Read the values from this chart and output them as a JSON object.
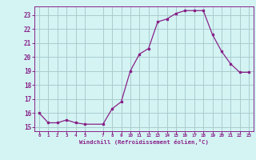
{
  "x": [
    0,
    1,
    2,
    3,
    4,
    5,
    7,
    8,
    9,
    10,
    11,
    12,
    13,
    14,
    15,
    16,
    17,
    18,
    19,
    20,
    21,
    22,
    23
  ],
  "y": [
    16.0,
    15.3,
    15.3,
    15.5,
    15.3,
    15.2,
    15.2,
    16.3,
    16.8,
    19.0,
    20.2,
    20.6,
    22.5,
    22.7,
    23.1,
    23.3,
    23.3,
    23.3,
    21.6,
    20.4,
    19.5,
    18.9,
    18.9
  ],
  "line_color": "#882288",
  "marker_color": "#882288",
  "bg_color": "#d4f4f4",
  "grid_color": "#aacccc",
  "ylabel_values": [
    15,
    16,
    17,
    18,
    19,
    20,
    21,
    22,
    23
  ],
  "xlabel_values": [
    0,
    1,
    2,
    3,
    4,
    5,
    7,
    8,
    9,
    10,
    11,
    12,
    13,
    14,
    15,
    16,
    17,
    18,
    19,
    20,
    21,
    22,
    23
  ],
  "xlabel": "Windchill (Refroidissement éolien,°C)",
  "ylim": [
    14.7,
    23.6
  ],
  "xlim": [
    -0.5,
    23.5
  ],
  "tick_color": "#882288",
  "axis_color": "#882288"
}
